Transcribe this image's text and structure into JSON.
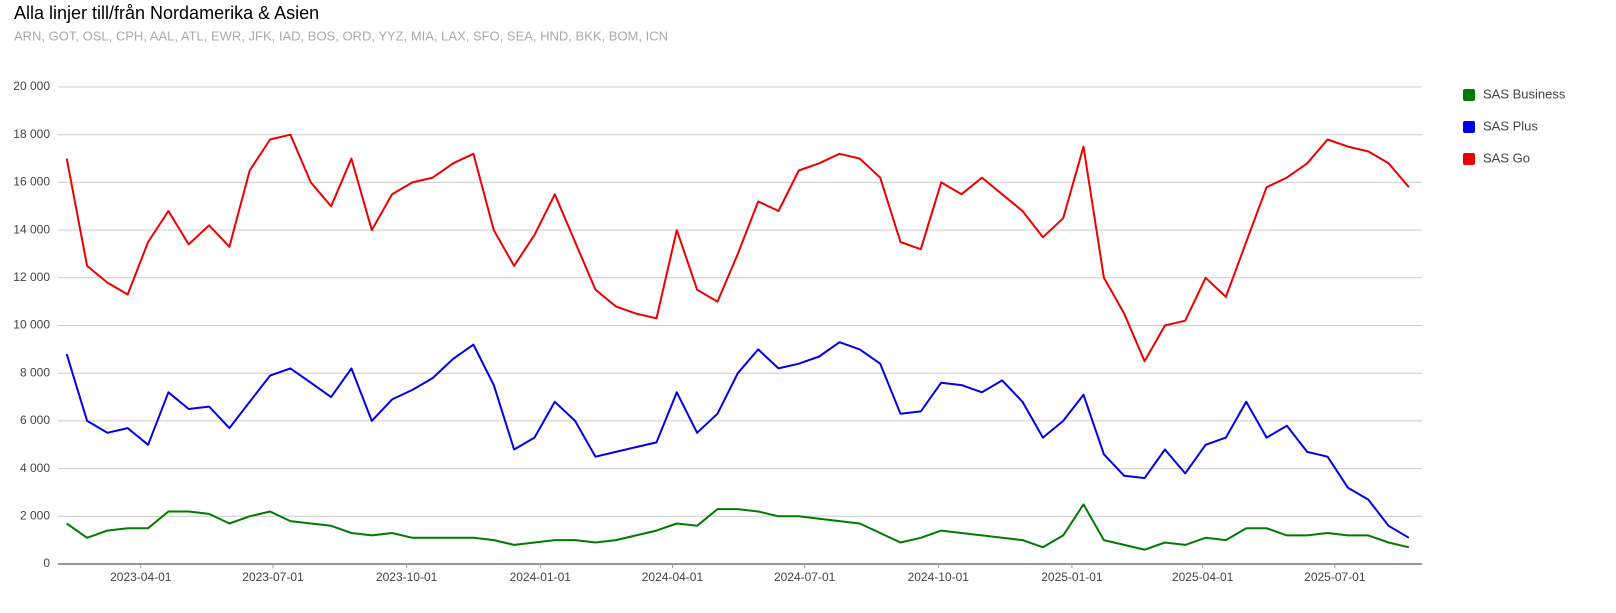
{
  "chart_data": {
    "type": "line",
    "title": "Alla linjer till/från Nordamerika & Asien",
    "subtitle": "ARN, GOT, OSL, CPH, AAL, ATL, EWR, JFK, IAD, BOS, ORD, YYZ, MIA, LAX, SFO, SEA, HND, BKK, BOM, ICN",
    "x": [
      "2023-02-09",
      "2023-02-23",
      "2023-03-09",
      "2023-03-23",
      "2023-04-06",
      "2023-04-20",
      "2023-05-04",
      "2023-05-18",
      "2023-06-01",
      "2023-06-15",
      "2023-06-29",
      "2023-07-13",
      "2023-07-27",
      "2023-08-10",
      "2023-08-24",
      "2023-09-07",
      "2023-09-21",
      "2023-10-05",
      "2023-10-19",
      "2023-11-02",
      "2023-11-16",
      "2023-11-30",
      "2023-12-14",
      "2023-12-28",
      "2024-01-11",
      "2024-01-25",
      "2024-02-08",
      "2024-02-22",
      "2024-03-07",
      "2024-03-21",
      "2024-04-04",
      "2024-04-18",
      "2024-05-02",
      "2024-05-16",
      "2024-05-30",
      "2024-06-13",
      "2024-06-27",
      "2024-07-11",
      "2024-07-25",
      "2024-08-08",
      "2024-08-22",
      "2024-09-05",
      "2024-09-19",
      "2024-10-03",
      "2024-10-17",
      "2024-10-31",
      "2024-11-14",
      "2024-11-28",
      "2024-12-12",
      "2024-12-26",
      "2025-01-09",
      "2025-01-23",
      "2025-02-06",
      "2025-02-20",
      "2025-03-06",
      "2025-03-20",
      "2025-04-03",
      "2025-04-17",
      "2025-05-01",
      "2025-05-15",
      "2025-05-29",
      "2025-06-12",
      "2025-06-26",
      "2025-07-10",
      "2025-07-24",
      "2025-08-07",
      "2025-08-21"
    ],
    "series": [
      {
        "name": "SAS Business",
        "color": "#007a00",
        "values": [
          1700,
          1100,
          1400,
          1500,
          1500,
          2200,
          2200,
          2100,
          1700,
          2000,
          2200,
          1800,
          1700,
          1600,
          1300,
          1200,
          1300,
          1100,
          1100,
          1100,
          1100,
          1000,
          800,
          900,
          1000,
          1000,
          900,
          1000,
          1200,
          1400,
          1700,
          1600,
          2300,
          2300,
          2200,
          2000,
          2000,
          1900,
          1800,
          1700,
          1300,
          900,
          1100,
          1400,
          1300,
          1200,
          1100,
          1000,
          700,
          1200,
          2500,
          1000,
          800,
          600,
          900,
          800,
          1100,
          1000,
          1500,
          1500,
          1200,
          1200,
          1300,
          1200,
          1200,
          900,
          700
        ]
      },
      {
        "name": "SAS Plus",
        "color": "#0000ee",
        "values": [
          8800,
          6000,
          5500,
          5700,
          5000,
          7200,
          6500,
          6600,
          5700,
          6800,
          7900,
          8200,
          7600,
          7000,
          8200,
          6000,
          6900,
          7300,
          7800,
          8600,
          9200,
          7500,
          4800,
          5300,
          6800,
          6000,
          4500,
          4700,
          4900,
          5100,
          7200,
          5500,
          6300,
          8000,
          9000,
          8200,
          8400,
          8700,
          9300,
          9000,
          8400,
          6300,
          6400,
          7600,
          7500,
          7200,
          7700,
          6800,
          5300,
          6000,
          7100,
          4600,
          3700,
          3600,
          4800,
          3800,
          5000,
          5300,
          6800,
          5300,
          5800,
          4700,
          4500,
          3200,
          2700,
          1600,
          1100
        ]
      },
      {
        "name": "SAS Go",
        "color": "#ee0000",
        "values": [
          17000,
          12500,
          11800,
          11300,
          13500,
          14800,
          13400,
          14200,
          13300,
          16500,
          17800,
          18000,
          16000,
          15000,
          17000,
          14000,
          15500,
          16000,
          16200,
          16800,
          17200,
          14000,
          12500,
          13800,
          15500,
          13500,
          11500,
          10800,
          10500,
          10300,
          14000,
          11500,
          11000,
          13000,
          15200,
          14800,
          16500,
          16800,
          17200,
          17000,
          16200,
          13500,
          13200,
          16000,
          15500,
          16200,
          15500,
          14800,
          13700,
          14500,
          17500,
          12000,
          10500,
          8500,
          10000,
          10200,
          12000,
          11200,
          13500,
          15800,
          16200,
          16800,
          17800,
          17500,
          17300,
          16800,
          15800
        ]
      }
    ],
    "xlim": [
      "2023-02-03",
      "2025-08-30"
    ],
    "xticks": [
      "2023-04-01",
      "2023-07-01",
      "2023-10-01",
      "2024-01-01",
      "2024-04-01",
      "2024-07-01",
      "2024-10-01",
      "2025-01-01",
      "2025-04-01",
      "2025-07-01"
    ],
    "ylim": [
      0,
      20000
    ],
    "yticks": [
      0,
      {
        "value": 2000,
        "label": "2 000"
      },
      {
        "value": 4000,
        "label": "4 000"
      },
      {
        "value": 6000,
        "label": "6 000"
      },
      {
        "value": 8000,
        "label": "8 000"
      },
      {
        "value": 10000,
        "label": "10 000"
      },
      {
        "value": 12000,
        "label": "12 000"
      },
      {
        "value": 14000,
        "label": "14 000"
      },
      {
        "value": 16000,
        "label": "16 000"
      },
      {
        "value": 18000,
        "label": "18 000"
      },
      {
        "value": 20000,
        "label": "20 000"
      }
    ],
    "grid": true,
    "legend": "right"
  }
}
